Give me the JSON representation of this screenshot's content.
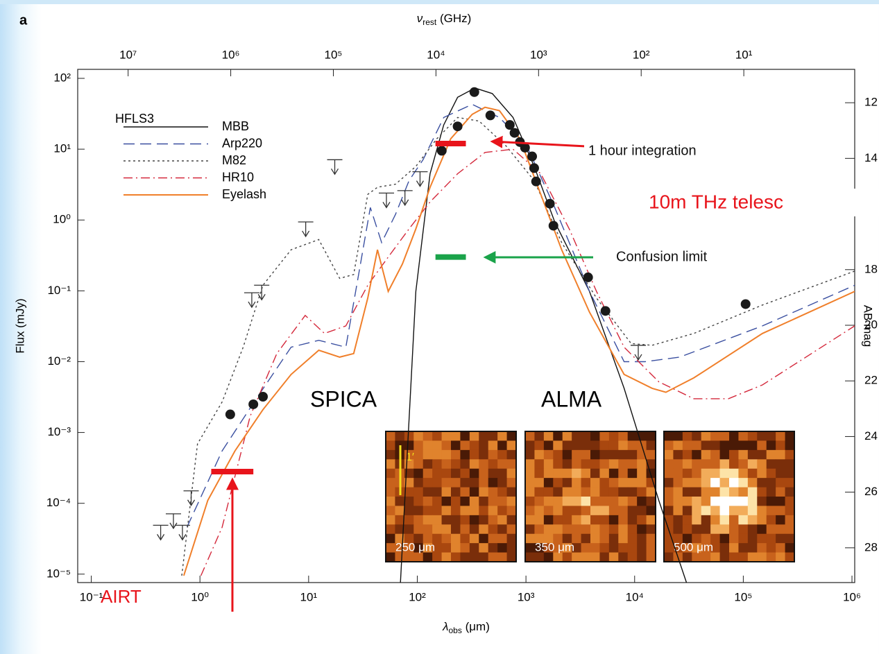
{
  "chart_data": {
    "type": "sed",
    "panel_label": "a",
    "xlabel": {
      "symbol": "λ",
      "sub": "obs",
      "unit": " (μm)"
    },
    "x2label": {
      "symbol": "ν",
      "sub": "rest",
      "unit": " (GHz)"
    },
    "ylabel": "Flux (mJy)",
    "y2label": "AB mag",
    "xscale": "log",
    "yscale": "log",
    "xlim": [
      0.075,
      1060000
    ],
    "ylim": [
      7.6e-06,
      134
    ],
    "x2lim": [
      31000000,
      0.83
    ],
    "y2lim": [
      29.25,
      10.8
    ],
    "xticks": [
      {
        "value": 0.1,
        "label": "10⁻¹"
      },
      {
        "value": 1,
        "label": "10⁰"
      },
      {
        "value": 10,
        "label": "10¹"
      },
      {
        "value": 100,
        "label": "10²"
      },
      {
        "value": 1000,
        "label": "10³"
      },
      {
        "value": 10000,
        "label": "10⁴"
      },
      {
        "value": 100000,
        "label": "10⁵"
      },
      {
        "value": 1000000,
        "label": "10⁶"
      }
    ],
    "x2ticks": [
      {
        "value": 10000000,
        "label": "10⁷"
      },
      {
        "value": 1000000,
        "label": "10⁶"
      },
      {
        "value": 100000,
        "label": "10⁵"
      },
      {
        "value": 10000,
        "label": "10⁴"
      },
      {
        "value": 1000,
        "label": "10³"
      },
      {
        "value": 100,
        "label": "10²"
      },
      {
        "value": 10,
        "label": "10¹"
      }
    ],
    "yticks": [
      {
        "value": 1e-05,
        "label": "10⁻⁵"
      },
      {
        "value": 0.0001,
        "label": "10⁻⁴"
      },
      {
        "value": 0.001,
        "label": "10⁻³"
      },
      {
        "value": 0.01,
        "label": "10⁻²"
      },
      {
        "value": 0.1,
        "label": "10⁻¹"
      },
      {
        "value": 1,
        "label": "10⁰"
      },
      {
        "value": 10,
        "label": "10¹"
      },
      {
        "value": 100,
        "label": "10²"
      }
    ],
    "y2ticks": [
      12,
      14,
      18,
      20,
      22,
      24,
      26,
      28
    ],
    "legend_title": "HFLS3",
    "series": [
      {
        "name": "MBB",
        "color": "#111111",
        "style": "solid",
        "x": [
          70,
          97,
          131,
          175,
          235,
          340,
          490,
          760,
          1190,
          1840,
          3840,
          8000,
          16700,
          30000
        ],
        "values": [
          7.6e-06,
          0.098,
          4.5,
          22,
          54,
          73,
          61,
          28,
          5.7,
          0.94,
          0.098,
          0.0042,
          0.00011,
          7.6e-06
        ]
      },
      {
        "name": "Arp220",
        "color": "#3a4fa0",
        "style": "dashed",
        "x": [
          0.76,
          1.6,
          3.3,
          6.9,
          12.4,
          22,
          30,
          37,
          47,
          63,
          84,
          113,
          175,
          320,
          570,
          1020,
          1840,
          3840,
          8000,
          12500,
          26000,
          150000,
          1060000
        ],
        "values": [
          4.6e-05,
          0.00055,
          0.003,
          0.016,
          0.02,
          0.016,
          0.24,
          1.5,
          0.48,
          1.2,
          3.6,
          7.1,
          28,
          43,
          28,
          11,
          1.5,
          0.098,
          0.01,
          0.01,
          0.0116,
          0.032,
          0.12
        ]
      },
      {
        "name": "M82",
        "color": "#444444",
        "style": "dotted",
        "x": [
          0.68,
          0.95,
          1.6,
          2.5,
          3.8,
          6.9,
          12.4,
          19.3,
          26,
          35,
          43,
          63,
          97,
          151,
          235,
          370,
          660,
          1190,
          2130,
          4460,
          9300,
          14500,
          35000,
          150000,
          1060000
        ],
        "values": [
          9.5e-06,
          0.00069,
          0.0027,
          0.016,
          0.12,
          0.38,
          0.53,
          0.15,
          0.17,
          2.3,
          2.9,
          3.2,
          5.7,
          14,
          28,
          25,
          11,
          3.6,
          0.48,
          0.079,
          0.018,
          0.017,
          0.025,
          0.063,
          0.19
        ]
      },
      {
        "name": "HR10",
        "color": "#d4283b",
        "style": "dashdot",
        "x": [
          1.02,
          1.6,
          2.9,
          5.1,
          9.3,
          14,
          22,
          35,
          54,
          84,
          131,
          235,
          420,
          760,
          1370,
          2500,
          4460,
          8000,
          16700,
          35000,
          73000,
          150000,
          1060000
        ],
        "values": [
          9.5e-06,
          4.6e-05,
          0.0017,
          0.013,
          0.045,
          0.025,
          0.032,
          0.12,
          0.3,
          0.75,
          1.8,
          4.5,
          9,
          10,
          4.5,
          0.75,
          0.098,
          0.016,
          0.0052,
          0.003,
          0.003,
          0.0047,
          0.032
        ]
      },
      {
        "name": "Eyelash",
        "color": "#f07f2a",
        "style": "solid",
        "x": [
          0.71,
          1.18,
          2.1,
          3.8,
          6.9,
          12.4,
          19.3,
          26,
          35,
          43,
          54,
          73,
          97,
          131,
          203,
          320,
          420,
          570,
          880,
          1370,
          2130,
          3840,
          8000,
          14500,
          19400,
          35000,
          150000,
          1060000
        ],
        "values": [
          9.5e-06,
          0.00011,
          0.00055,
          0.0021,
          0.0066,
          0.0145,
          0.0116,
          0.013,
          0.079,
          0.38,
          0.098,
          0.24,
          0.75,
          2.9,
          14,
          31,
          39,
          35,
          14,
          2.3,
          0.38,
          0.05,
          0.0066,
          0.0042,
          0.0037,
          0.0059,
          0.025,
          0.098
        ]
      }
    ],
    "detections": {
      "x": [
        1.9,
        3.1,
        3.8,
        168,
        235,
        335,
        470,
        710,
        785,
        880,
        980,
        1140,
        1190,
        1240,
        1660,
        1790,
        3730,
        5390,
        105000
      ],
      "values": [
        0.0018,
        0.0025,
        0.0032,
        9.5,
        21,
        64,
        30,
        22,
        17,
        12.6,
        10.5,
        7.9,
        5.4,
        3.5,
        1.7,
        0.83,
        0.155,
        0.052,
        0.065
      ]
    },
    "upper_limits": {
      "x": [
        0.435,
        0.57,
        0.69,
        0.83,
        3.0,
        3.7,
        9.4,
        17.4,
        52,
        77,
        106,
        10800
      ],
      "values": [
        4.9e-05,
        7.1e-05,
        4.9e-05,
        0.00015,
        0.094,
        0.12,
        0.94,
        7.1,
        2.4,
        2.6,
        4.8,
        0.017
      ]
    },
    "sensitivity_bars": [
      {
        "label": "1 hour integration",
        "color": "#e8141b",
        "x": [
          147,
          280
        ],
        "value": 12
      },
      {
        "label": "Confusion limit",
        "color": "#1aa34a",
        "x": [
          147,
          280
        ],
        "value": 0.3
      },
      {
        "label": "AIRT",
        "color": "#e8141b",
        "x": [
          1.27,
          3.1
        ],
        "value": 0.00028
      }
    ],
    "telescope_note": "10m THz telesc",
    "telescope_labels": [
      "SPICA",
      "ALMA"
    ],
    "insets": [
      {
        "label": "250 μm"
      },
      {
        "label": "350 μm"
      },
      {
        "label": "500 μm"
      }
    ],
    "inset_scale_label": "1′"
  }
}
